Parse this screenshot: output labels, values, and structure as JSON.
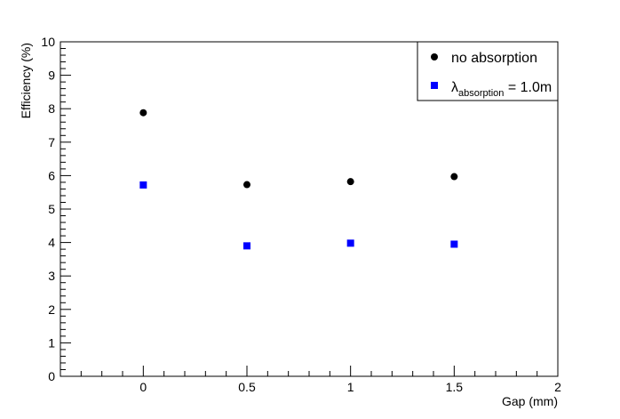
{
  "chart_data": {
    "type": "scatter",
    "title": "",
    "xlabel": "Gap (mm)",
    "ylabel": "Efficiency (%)",
    "xlim": [
      -0.4,
      2.0
    ],
    "ylim": [
      0,
      10
    ],
    "grid": false,
    "legend_position": "top-right",
    "x_ticks": [
      {
        "value": 0,
        "label": "0"
      },
      {
        "value": 0.5,
        "label": "0.5"
      },
      {
        "value": 1,
        "label": "1"
      },
      {
        "value": 1.5,
        "label": "1.5"
      },
      {
        "value": 2,
        "label": "2"
      }
    ],
    "y_ticks": [
      {
        "value": 0,
        "label": "0"
      },
      {
        "value": 1,
        "label": "1"
      },
      {
        "value": 2,
        "label": "2"
      },
      {
        "value": 3,
        "label": "3"
      },
      {
        "value": 4,
        "label": "4"
      },
      {
        "value": 5,
        "label": "5"
      },
      {
        "value": 6,
        "label": "6"
      },
      {
        "value": 7,
        "label": "7"
      },
      {
        "value": 8,
        "label": "8"
      },
      {
        "value": 9,
        "label": "9"
      },
      {
        "value": 10,
        "label": "10"
      }
    ],
    "series": [
      {
        "name": "no absorption",
        "marker": "circle",
        "color": "#000000",
        "points": [
          {
            "x": 0,
            "y": 7.88
          },
          {
            "x": 0.5,
            "y": 5.73
          },
          {
            "x": 1,
            "y": 5.82
          },
          {
            "x": 1.5,
            "y": 5.97
          }
        ]
      },
      {
        "name_symbol": "λ",
        "name_subscript": "absorption",
        "name_suffix": " = 1.0m",
        "marker": "square",
        "color": "#0000ff",
        "points": [
          {
            "x": 0,
            "y": 5.72
          },
          {
            "x": 0.5,
            "y": 3.9
          },
          {
            "x": 1,
            "y": 3.98
          },
          {
            "x": 1.5,
            "y": 3.95
          }
        ]
      }
    ]
  }
}
